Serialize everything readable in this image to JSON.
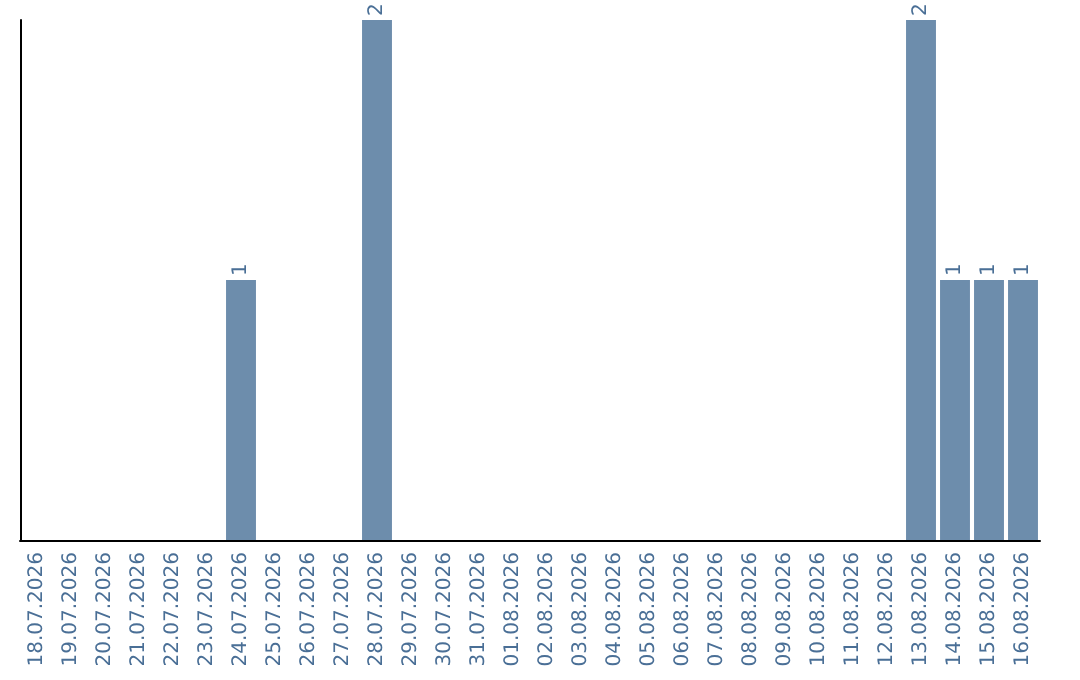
{
  "chart_data": {
    "type": "bar",
    "categories": [
      "18.07.2026",
      "19.07.2026",
      "20.07.2026",
      "21.07.2026",
      "22.07.2026",
      "23.07.2026",
      "24.07.2026",
      "25.07.2026",
      "26.07.2026",
      "27.07.2026",
      "28.07.2026",
      "29.07.2026",
      "30.07.2026",
      "31.07.2026",
      "01.08.2026",
      "02.08.2026",
      "03.08.2026",
      "04.08.2026",
      "05.08.2026",
      "06.08.2026",
      "07.08.2026",
      "08.08.2026",
      "09.08.2026",
      "10.08.2026",
      "11.08.2026",
      "12.08.2026",
      "13.08.2026",
      "14.08.2026",
      "15.08.2026",
      "16.08.2026"
    ],
    "values": [
      0,
      0,
      0,
      0,
      0,
      0,
      1,
      0,
      0,
      0,
      2,
      0,
      0,
      0,
      0,
      0,
      0,
      0,
      0,
      0,
      0,
      0,
      0,
      0,
      0,
      0,
      2,
      1,
      1,
      1
    ],
    "value_labels": [
      null,
      null,
      null,
      null,
      null,
      null,
      "1",
      null,
      null,
      null,
      "2",
      null,
      null,
      null,
      null,
      null,
      null,
      null,
      null,
      null,
      null,
      null,
      null,
      null,
      null,
      null,
      "2",
      "1",
      "1",
      "1"
    ],
    "color": "#6d8dac",
    "grid": false,
    "tick_labels": "x"
  }
}
